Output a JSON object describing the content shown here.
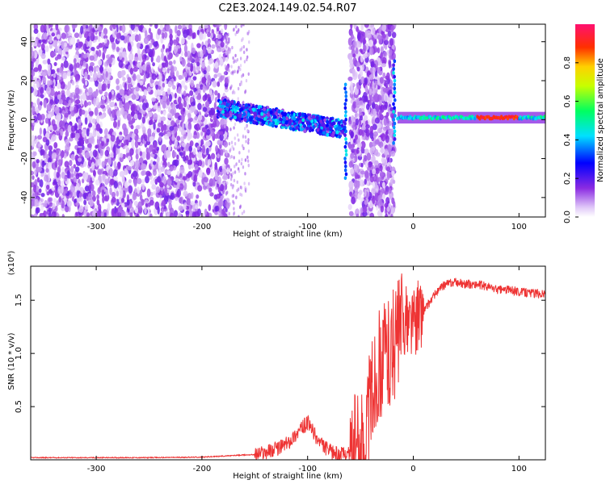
{
  "title": "C2E3.2024.149.02.54.R07",
  "chart_data": [
    {
      "type": "heatmap",
      "xlabel": "Height of straight line (km)",
      "ylabel": "Frequency (Hz)",
      "xlim": [
        -362,
        125
      ],
      "ylim": [
        -50,
        49
      ],
      "x_ticks": [
        -300,
        -200,
        -100,
        0,
        100
      ],
      "x_tick_labels": [
        "-300",
        "-200",
        "-100",
        "0",
        "100"
      ],
      "y_ticks": [
        -40,
        -20,
        0,
        20,
        40
      ],
      "y_tick_labels": [
        "-40",
        "-20",
        "0",
        "20",
        "40"
      ],
      "colorbar": {
        "label": "Normalized spectral amplitude",
        "range": [
          0,
          1
        ],
        "ticks": [
          0.0,
          0.2,
          0.4,
          0.6,
          0.8
        ],
        "tick_labels": [
          "0.0",
          "0.2",
          "0.4",
          "0.6",
          "0.8"
        ]
      },
      "features": [
        {
          "x_range": [
            -362,
            -175
          ],
          "freq_range": [
            -50,
            49
          ],
          "amplitude": 0.12
        },
        {
          "x_range": [
            -185,
            -65
          ],
          "freq_at_start": 6,
          "freq_at_end": -5,
          "amplitude": 0.3
        },
        {
          "x_range": [
            -60,
            -18
          ],
          "freq_range": [
            -50,
            49
          ],
          "amplitude": 0.12
        },
        {
          "x_range": [
            -15,
            125
          ],
          "freq": 1,
          "amplitude": 0.45
        },
        {
          "x_range": [
            60,
            100
          ],
          "freq": 1,
          "amplitude": 0.95
        }
      ]
    },
    {
      "type": "line",
      "xlabel": "Height of straight line (km)",
      "ylabel": "SNR (10 * v/v)",
      "y_multiplier": "(x10⁴)",
      "xlim": [
        -362,
        125
      ],
      "ylim": [
        0,
        1.82
      ],
      "x_ticks": [
        -300,
        -200,
        -100,
        0,
        100
      ],
      "x_tick_labels": [
        "-300",
        "-200",
        "-100",
        "0",
        "100"
      ],
      "y_ticks": [
        0.5,
        1.0,
        1.5
      ],
      "y_tick_labels": [
        "0.5",
        "1.0",
        "1.5"
      ],
      "series": [
        {
          "color": "#ee3333",
          "x": [
            -362,
            -300,
            -250,
            -200,
            -150,
            -130,
            -120,
            -110,
            -100,
            -90,
            -80,
            -70,
            -60,
            -50,
            -45,
            -40,
            -35,
            -30,
            -25,
            -20,
            -15,
            -10,
            -5,
            0,
            5,
            10,
            20,
            30,
            40,
            50,
            60,
            70,
            80,
            90,
            100,
            110,
            125
          ],
          "y": [
            0.02,
            0.02,
            0.02,
            0.025,
            0.05,
            0.1,
            0.15,
            0.25,
            0.35,
            0.18,
            0.08,
            0.05,
            0.06,
            0.1,
            0.25,
            0.6,
            0.8,
            0.95,
            1.0,
            1.05,
            1.15,
            1.3,
            1.3,
            1.3,
            1.35,
            1.4,
            1.55,
            1.65,
            1.67,
            1.65,
            1.65,
            1.63,
            1.6,
            1.6,
            1.58,
            1.57,
            1.56
          ]
        }
      ]
    }
  ]
}
